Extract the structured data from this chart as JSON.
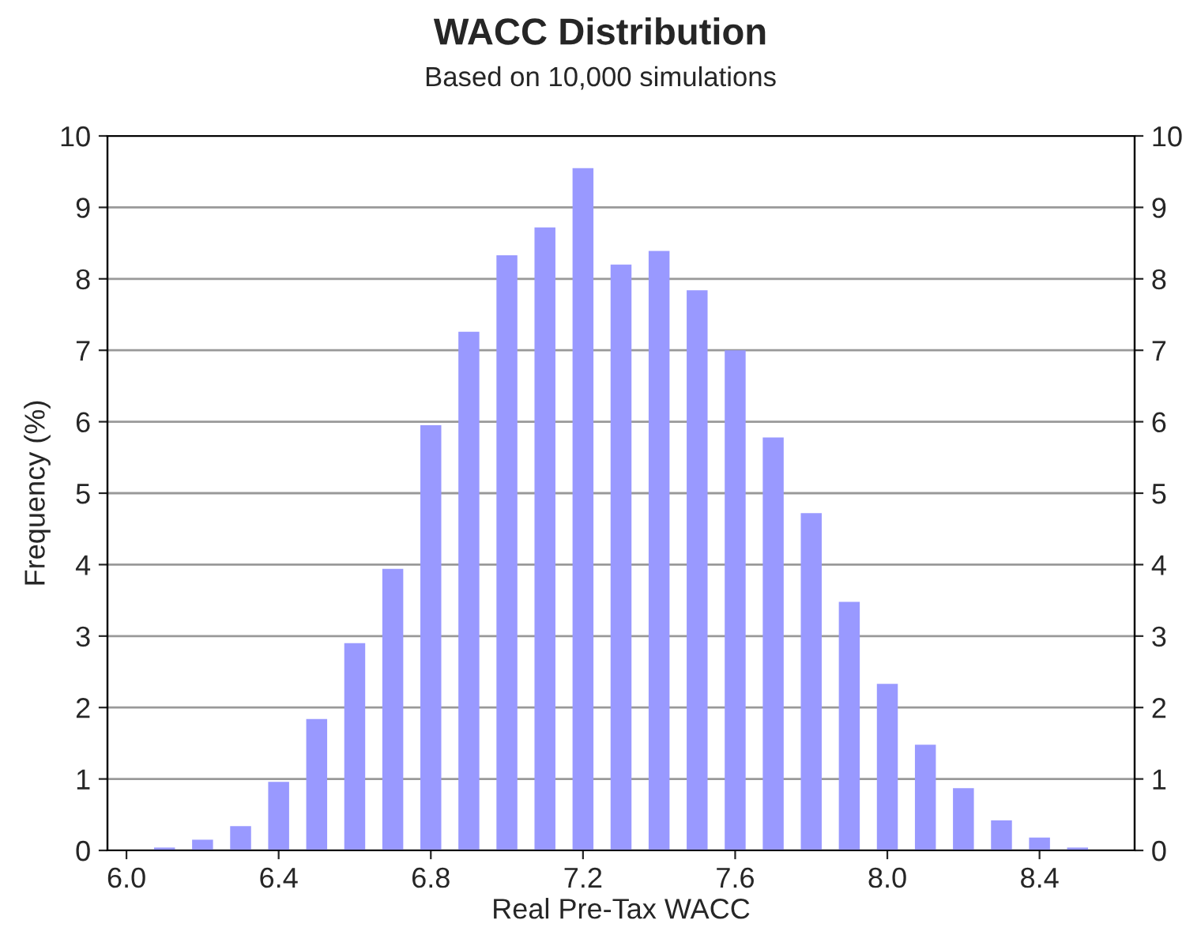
{
  "chart_data": {
    "type": "bar",
    "title": "WACC Distribution",
    "subtitle": "Based on 10,000 simulations",
    "xlabel": "Real Pre-Tax WACC",
    "ylabel": "Frequency (%)",
    "x": [
      6.1,
      6.2,
      6.3,
      6.4,
      6.5,
      6.6,
      6.7,
      6.8,
      6.9,
      7.0,
      7.1,
      7.2,
      7.3,
      7.4,
      7.5,
      7.6,
      7.7,
      7.8,
      7.9,
      8.0,
      8.1,
      8.2,
      8.3,
      8.4,
      8.5
    ],
    "series": [
      {
        "color": "#9999ff",
        "values": [
          0.04,
          0.15,
          0.34,
          0.96,
          1.84,
          2.9,
          3.94,
          5.95,
          7.26,
          8.33,
          8.72,
          9.55,
          8.2,
          8.39,
          7.84,
          7.0,
          5.78,
          4.72,
          3.48,
          2.33,
          1.48,
          0.87,
          0.42,
          0.18,
          0.04
        ]
      }
    ],
    "xlim": [
      5.95,
      8.65
    ],
    "xticks": [
      {
        "value": 6.0,
        "label": "6.0"
      },
      {
        "value": 6.4,
        "label": "6.4"
      },
      {
        "value": 6.8,
        "label": "6.8"
      },
      {
        "value": 7.2,
        "label": "7.2"
      },
      {
        "value": 7.6,
        "label": "7.6"
      },
      {
        "value": 8.0,
        "label": "8.0"
      },
      {
        "value": 8.4,
        "label": "8.4"
      }
    ],
    "ylim": [
      0,
      10
    ],
    "yticks": [
      0,
      1,
      2,
      3,
      4,
      5,
      6,
      7,
      8,
      9,
      10
    ],
    "y2lim": [
      0,
      10
    ],
    "y2ticks": [
      0,
      1,
      2,
      3,
      4,
      5,
      6,
      7,
      8,
      9,
      10
    ],
    "grid": "y",
    "legend": false
  }
}
